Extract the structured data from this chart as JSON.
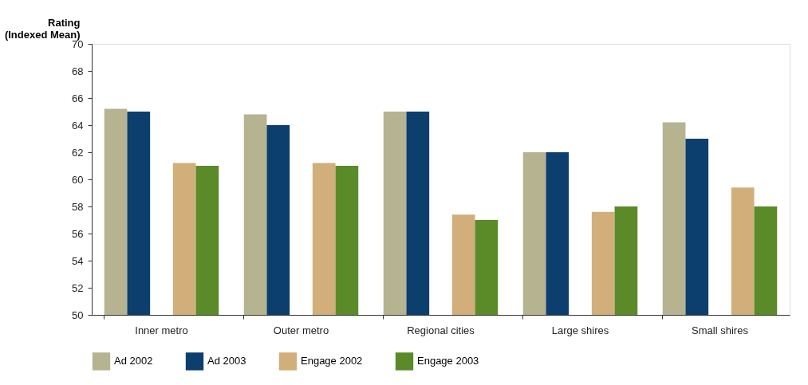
{
  "chart_data": {
    "type": "bar",
    "ylabel": "Rating\n(Indexed Mean)",
    "categories": [
      "Inner metro",
      "Outer metro",
      "Regional cities",
      "Large shires",
      "Small shires"
    ],
    "series": [
      {
        "name": "Ad 2002",
        "color": "#b6b391",
        "values": [
          65.2,
          64.8,
          65.0,
          62.0,
          64.2
        ]
      },
      {
        "name": "Ad 2003",
        "color": "#0c3f6d",
        "values": [
          65.0,
          64.0,
          65.0,
          62.0,
          63.0
        ]
      },
      {
        "name": "Engage 2002",
        "color": "#d2ae7a",
        "values": [
          61.2,
          61.2,
          57.4,
          57.6,
          59.4
        ]
      },
      {
        "name": "Engage 2003",
        "color": "#5b8a29",
        "values": [
          61.0,
          61.0,
          57.0,
          58.0,
          58.0
        ]
      }
    ],
    "ylim": [
      50,
      70
    ],
    "yticks": [
      50,
      52,
      54,
      56,
      58,
      60,
      62,
      64,
      66,
      68,
      70
    ],
    "grid": false,
    "legend": "bottom"
  }
}
